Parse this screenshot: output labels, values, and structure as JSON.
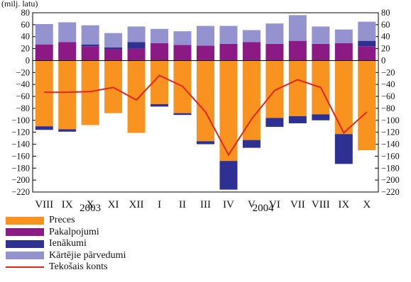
{
  "unit_label": "(milj. latu)",
  "colors": {
    "preces": "#f7931e",
    "pakalpojumi": "#8b1a85",
    "ienakumi": "#2e3192",
    "partvedumi": "#9492cf",
    "konts": "#e1261c"
  },
  "chart_data": {
    "type": "bar",
    "stacked": true,
    "ylim": [
      -220,
      80
    ],
    "yticks": [
      80,
      60,
      40,
      20,
      0,
      -20,
      -40,
      -60,
      -80,
      -100,
      -120,
      -140,
      -160,
      -180,
      -200,
      -220
    ],
    "ytick_labels": [
      "80",
      "60",
      "40",
      "20",
      "0",
      "−20",
      "−40",
      "−60",
      "−80",
      "−100",
      "−120",
      "−140",
      "−160",
      "−180",
      "−200",
      "−220"
    ],
    "categories": [
      "VIII",
      "IX",
      "X",
      "XI",
      "XII",
      "I",
      "II",
      "III",
      "IV",
      "V",
      "VI",
      "VII",
      "VIII",
      "IX",
      "X"
    ],
    "years": [
      {
        "label": "2003",
        "from": 0,
        "to": 4
      },
      {
        "label": "2004",
        "from": 5,
        "to": 14
      }
    ],
    "series": [
      {
        "name": "Preces",
        "color_key": "preces",
        "values": [
          -110,
          -115,
          -108,
          -88,
          -121,
          -73,
          -88,
          -135,
          -168,
          -133,
          -96,
          -93,
          -90,
          -123,
          -150
        ]
      },
      {
        "name": "Pakalpojumi",
        "color_key": "pakalpojumi",
        "values": [
          27,
          31,
          24,
          19,
          20,
          29,
          26,
          25,
          28,
          31,
          28,
          33,
          28,
          29,
          24
        ]
      },
      {
        "name": "Ienākumi",
        "color_key": "ienakumi",
        "values": [
          -6,
          -4,
          3,
          3,
          11,
          -4,
          -3,
          -5,
          -48,
          -13,
          -15,
          -12,
          -10,
          -50,
          9
        ]
      },
      {
        "name": "Kārtējie pārvedumi",
        "color_key": "partvedumi",
        "values": [
          34,
          33,
          32,
          24,
          26,
          24,
          23,
          33,
          30,
          20,
          34,
          43,
          29,
          23,
          32
        ]
      },
      {
        "name": "Tekošais konts",
        "color_key": "konts",
        "type": "line",
        "values": [
          -53,
          -53,
          -52,
          -45,
          -66,
          -25,
          -43,
          -86,
          -158,
          -98,
          -50,
          -32,
          -45,
          -121,
          -86
        ]
      }
    ],
    "legend_placement": "bottom-left"
  }
}
